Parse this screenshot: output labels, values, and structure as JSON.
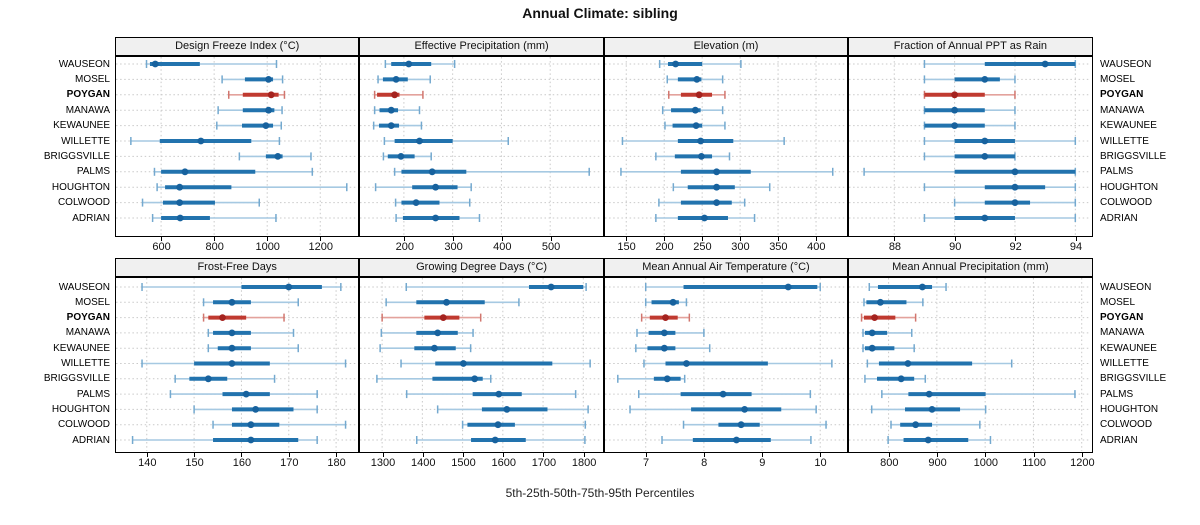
{
  "title": "Annual Climate: sibling",
  "footer": "5th-25th-50th-75th-95th Percentiles",
  "sites": [
    "WAUSEON",
    "MOSEL",
    "POYGAN",
    "MANAWA",
    "KEWAUNEE",
    "WILLETTE",
    "BRIGGSVILLE",
    "PALMS",
    "HOUGHTON",
    "COLWOOD",
    "ADRIAN"
  ],
  "highlighted_site": "POYGAN",
  "colors": {
    "normal": {
      "light": "#a6c9e2",
      "mid": "#74a9cf",
      "main": "#2273ae",
      "dot": "#17629e"
    },
    "highlight": {
      "light": "#e3a29c",
      "mid": "#d1766e",
      "main": "#c03a30",
      "dot": "#a5231f"
    },
    "grid": "#c9c9c9",
    "panel_header_bg": "#f0f0f0",
    "border": "#000000"
  },
  "chart_data": [
    {
      "type": "scatter",
      "variant": "percentile-dot-whisker",
      "title": "Design Freeze Index (°C)",
      "row": 0,
      "col": 0,
      "xlim": [
        430,
        1340
      ],
      "ticks": [
        600,
        800,
        1000,
        1200
      ],
      "percentiles": [
        "5th",
        "25th",
        "50th",
        "75th",
        "95th"
      ],
      "values": [
        [
          545,
          558,
          578,
          746,
          1035
        ],
        [
          830,
          916,
          1005,
          1022,
          1058
        ],
        [
          855,
          908,
          1015,
          1043,
          1065
        ],
        [
          815,
          908,
          1005,
          1027,
          1056
        ],
        [
          810,
          905,
          995,
          1022,
          1053
        ],
        [
          486,
          595,
          750,
          940,
          1046
        ],
        [
          895,
          995,
          1040,
          1058,
          1165
        ],
        [
          575,
          600,
          690,
          955,
          1170
        ],
        [
          585,
          615,
          670,
          865,
          1300
        ],
        [
          530,
          607,
          670,
          803,
          970
        ],
        [
          568,
          600,
          672,
          784,
          1033
        ]
      ]
    },
    {
      "type": "scatter",
      "variant": "percentile-dot-whisker",
      "title": "Effective Precipitation (mm)",
      "row": 0,
      "col": 1,
      "xlim": [
        110,
        605
      ],
      "ticks": [
        200,
        300,
        400,
        500
      ],
      "percentiles": [
        "5th",
        "25th",
        "50th",
        "75th",
        "95th"
      ],
      "values": [
        [
          162,
          174,
          210,
          256,
          304
        ],
        [
          147,
          157,
          184,
          208,
          254
        ],
        [
          140,
          145,
          181,
          191,
          239
        ],
        [
          140,
          150,
          174,
          188,
          232
        ],
        [
          138,
          149,
          174,
          190,
          236
        ],
        [
          160,
          181,
          232,
          300,
          414
        ],
        [
          158,
          167,
          194,
          222,
          256
        ],
        [
          181,
          195,
          258,
          328,
          580
        ],
        [
          142,
          217,
          265,
          310,
          338
        ],
        [
          183,
          195,
          225,
          273,
          335
        ],
        [
          184,
          198,
          265,
          314,
          355
        ]
      ]
    },
    {
      "type": "scatter",
      "variant": "percentile-dot-whisker",
      "title": "Elevation (m)",
      "row": 0,
      "col": 2,
      "xlim": [
        122,
        440
      ],
      "ticks": [
        150,
        200,
        250,
        300,
        350,
        400
      ],
      "percentiles": [
        "5th",
        "25th",
        "50th",
        "75th",
        "95th"
      ],
      "values": [
        [
          194,
          205,
          215,
          250,
          301
        ],
        [
          204,
          218,
          243,
          249,
          277
        ],
        [
          206,
          222,
          246,
          263,
          280
        ],
        [
          198,
          209,
          241,
          248,
          277
        ],
        [
          201,
          211,
          242,
          250,
          280
        ],
        [
          145,
          218,
          248,
          291,
          358
        ],
        [
          189,
          214,
          249,
          263,
          286
        ],
        [
          143,
          222,
          269,
          314,
          422
        ],
        [
          212,
          231,
          269,
          293,
          339
        ],
        [
          193,
          222,
          269,
          289,
          306
        ],
        [
          189,
          218,
          253,
          284,
          319
        ]
      ]
    },
    {
      "type": "scatter",
      "variant": "percentile-dot-whisker",
      "title": "Fraction of Annual PPT as Rain",
      "row": 0,
      "col": 3,
      "xlim": [
        86.5,
        94.5
      ],
      "ticks": [
        88,
        90,
        92,
        94
      ],
      "percentiles": [
        "5th",
        "25th",
        "50th",
        "75th",
        "95th"
      ],
      "values": [
        [
          89,
          91,
          93,
          94,
          94
        ],
        [
          89,
          90,
          91,
          91.5,
          92
        ],
        [
          89,
          89,
          90,
          91,
          92
        ],
        [
          89,
          89,
          90,
          91,
          92
        ],
        [
          89,
          89,
          90,
          91,
          92
        ],
        [
          89,
          90,
          91,
          92,
          94
        ],
        [
          89,
          90,
          91,
          92,
          92
        ],
        [
          87,
          90,
          92,
          94,
          94
        ],
        [
          89,
          91,
          92,
          93,
          94
        ],
        [
          90,
          91,
          92,
          92.5,
          94
        ],
        [
          89,
          90,
          91,
          92,
          94
        ]
      ]
    },
    {
      "type": "scatter",
      "variant": "percentile-dot-whisker",
      "title": "Frost-Free Days",
      "row": 1,
      "col": 0,
      "xlim": [
        133.5,
        184.5
      ],
      "ticks": [
        140,
        150,
        160,
        170,
        180
      ],
      "percentiles": [
        "5th",
        "25th",
        "50th",
        "75th",
        "95th"
      ],
      "values": [
        [
          139,
          160,
          170,
          177,
          181
        ],
        [
          152,
          154,
          158,
          162,
          172
        ],
        [
          152,
          153,
          156,
          161,
          169
        ],
        [
          153,
          154,
          158,
          162,
          171
        ],
        [
          153,
          155,
          158,
          162,
          172
        ],
        [
          139,
          150,
          158,
          166,
          182
        ],
        [
          146,
          149,
          153,
          157,
          167
        ],
        [
          145,
          156,
          161,
          166,
          176
        ],
        [
          150,
          158,
          163,
          171,
          176
        ],
        [
          154,
          158,
          162,
          168,
          182
        ],
        [
          137,
          154,
          162,
          172,
          176
        ]
      ]
    },
    {
      "type": "scatter",
      "variant": "percentile-dot-whisker",
      "title": "Growing Degree Days (°C)",
      "row": 1,
      "col": 1,
      "xlim": [
        1245,
        1845
      ],
      "ticks": [
        1300,
        1400,
        1500,
        1600,
        1700,
        1800
      ],
      "percentiles": [
        "5th",
        "25th",
        "50th",
        "75th",
        "95th"
      ],
      "values": [
        [
          1360,
          1665,
          1720,
          1800,
          1807
        ],
        [
          1310,
          1385,
          1460,
          1555,
          1640
        ],
        [
          1300,
          1405,
          1452,
          1492,
          1545
        ],
        [
          1298,
          1385,
          1438,
          1488,
          1526
        ],
        [
          1295,
          1380,
          1430,
          1483,
          1520
        ],
        [
          1347,
          1432,
          1502,
          1723,
          1817
        ],
        [
          1287,
          1425,
          1530,
          1550,
          1570
        ],
        [
          1361,
          1525,
          1590,
          1647,
          1781
        ],
        [
          1438,
          1548,
          1610,
          1711,
          1812
        ],
        [
          1500,
          1512,
          1588,
          1630,
          1805
        ],
        [
          1386,
          1521,
          1581,
          1657,
          1804
        ]
      ]
    },
    {
      "type": "scatter",
      "variant": "percentile-dot-whisker",
      "title": "Mean Annual Air Temperature (°C)",
      "row": 1,
      "col": 2,
      "xlim": [
        6.3,
        10.45
      ],
      "ticks": [
        7,
        8,
        9,
        10
      ],
      "percentiles": [
        "5th",
        "25th",
        "50th",
        "75th",
        "95th"
      ],
      "values": [
        [
          7.0,
          7.65,
          9.45,
          9.95,
          10.0
        ],
        [
          7.0,
          7.1,
          7.47,
          7.57,
          7.7
        ],
        [
          6.93,
          7.07,
          7.34,
          7.55,
          7.75
        ],
        [
          6.85,
          7.05,
          7.32,
          7.51,
          8.0
        ],
        [
          6.83,
          7.03,
          7.32,
          7.51,
          8.1
        ],
        [
          6.97,
          7.34,
          7.7,
          9.1,
          10.2
        ],
        [
          6.52,
          7.14,
          7.37,
          7.6,
          7.67
        ],
        [
          6.88,
          7.6,
          8.33,
          8.82,
          9.83
        ],
        [
          6.73,
          7.78,
          8.7,
          9.33,
          9.93
        ],
        [
          7.65,
          8.25,
          8.64,
          8.96,
          10.1
        ],
        [
          7.28,
          7.81,
          8.56,
          9.15,
          9.84
        ]
      ]
    },
    {
      "type": "scatter",
      "variant": "percentile-dot-whisker",
      "title": "Mean Annual Precipitation (mm)",
      "row": 1,
      "col": 3,
      "xlim": [
        718,
        1218
      ],
      "ticks": [
        800,
        900,
        1000,
        1100,
        1200
      ],
      "percentiles": [
        "5th",
        "25th",
        "50th",
        "75th",
        "95th"
      ],
      "values": [
        [
          760,
          778,
          870,
          890,
          919
        ],
        [
          749,
          754,
          783,
          837,
          871
        ],
        [
          744,
          749,
          771,
          814,
          856
        ],
        [
          747,
          751,
          766,
          797,
          848
        ],
        [
          747,
          751,
          766,
          812,
          853
        ],
        [
          756,
          780,
          840,
          973,
          1055
        ],
        [
          751,
          776,
          826,
          853,
          876
        ],
        [
          786,
          841,
          884,
          1001,
          1186
        ],
        [
          765,
          834,
          890,
          948,
          1001
        ],
        [
          805,
          824,
          856,
          890,
          989
        ],
        [
          799,
          831,
          882,
          965,
          1011
        ]
      ]
    }
  ]
}
